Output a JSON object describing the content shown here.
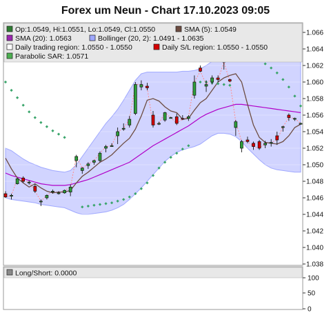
{
  "chart_data": {
    "type": "candlestick",
    "title": "Forex um Neun - Chart 17.10.2023 09:05",
    "ylim": [
      1.038,
      1.067
    ],
    "y_ticks": [
      "1.066",
      "1.064",
      "1.062",
      "1.060",
      "1.058",
      "1.056",
      "1.054",
      "1.052",
      "1.050",
      "1.048",
      "1.046",
      "1.044",
      "1.042",
      "1.040",
      "1.038"
    ],
    "legend": [
      {
        "label": "Op:1.0549, Hi:1.0551, Lo:1.0549, Cl:1.0550",
        "color": "#2e7d32"
      },
      {
        "label": "SMA (5): 1.0549",
        "color": "#6d4c41"
      },
      {
        "label": "SMA (20): 1.0563",
        "color": "#9c27b0"
      },
      {
        "label": "Bollinger (20, 2): 1.0491 - 1.0635",
        "color": "#9fa8ff"
      },
      {
        "label": "Daily trading region: 1.0550 - 1.0550",
        "color": "#ffffff"
      },
      {
        "label": "Daily S/L region: 1.0550 - 1.0550",
        "color": "#d50000"
      },
      {
        "label": "Parabolic SAR: 1.0571",
        "color": "#4caf50"
      }
    ],
    "candles": [
      {
        "o": 1.0465,
        "h": 1.0468,
        "l": 1.046,
        "c": 1.0461
      },
      {
        "o": 1.0462,
        "h": 1.0465,
        "l": 1.0458,
        "c": 1.0463
      },
      {
        "o": 1.0477,
        "h": 1.0484,
        "l": 1.0476,
        "c": 1.0483
      },
      {
        "o": 1.0484,
        "h": 1.0486,
        "l": 1.0478,
        "c": 1.048
      },
      {
        "o": 1.0478,
        "h": 1.0481,
        "l": 1.0476,
        "c": 1.0479
      },
      {
        "o": 1.0474,
        "h": 1.0477,
        "l": 1.0466,
        "c": 1.0468
      },
      {
        "o": 1.0455,
        "h": 1.0458,
        "l": 1.045,
        "c": 1.0456
      },
      {
        "o": 1.046,
        "h": 1.0464,
        "l": 1.0458,
        "c": 1.0463
      },
      {
        "o": 1.0467,
        "h": 1.047,
        "l": 1.0465,
        "c": 1.0468
      },
      {
        "o": 1.0466,
        "h": 1.0468,
        "l": 1.0464,
        "c": 1.0466
      },
      {
        "o": 1.0466,
        "h": 1.047,
        "l": 1.0465,
        "c": 1.0469
      },
      {
        "o": 1.0467,
        "h": 1.0476,
        "l": 1.0462,
        "c": 1.0473
      },
      {
        "o": 1.0505,
        "h": 1.0512,
        "l": 1.0497,
        "c": 1.051
      },
      {
        "o": 1.0493,
        "h": 1.0497,
        "l": 1.0489,
        "c": 1.0496
      },
      {
        "o": 1.0499,
        "h": 1.0503,
        "l": 1.0495,
        "c": 1.0501
      },
      {
        "o": 1.0503,
        "h": 1.0506,
        "l": 1.05,
        "c": 1.0505
      },
      {
        "o": 1.0505,
        "h": 1.0516,
        "l": 1.0503,
        "c": 1.0514
      },
      {
        "o": 1.052,
        "h": 1.0524,
        "l": 1.0515,
        "c": 1.0522
      },
      {
        "o": 1.0523,
        "h": 1.0526,
        "l": 1.0522,
        "c": 1.0523
      },
      {
        "o": 1.0535,
        "h": 1.0545,
        "l": 1.0525,
        "c": 1.054
      },
      {
        "o": 1.0543,
        "h": 1.055,
        "l": 1.0541,
        "c": 1.0544
      },
      {
        "o": 1.0548,
        "h": 1.0559,
        "l": 1.0545,
        "c": 1.0555
      },
      {
        "o": 1.0562,
        "h": 1.06,
        "l": 1.056,
        "c": 1.0597
      },
      {
        "o": 1.0594,
        "h": 1.0602,
        "l": 1.059,
        "c": 1.0597
      },
      {
        "o": 1.0595,
        "h": 1.0599,
        "l": 1.059,
        "c": 1.0593
      },
      {
        "o": 1.056,
        "h": 1.0565,
        "l": 1.0545,
        "c": 1.0548
      },
      {
        "o": 1.0549,
        "h": 1.0552,
        "l": 1.0548,
        "c": 1.055
      },
      {
        "o": 1.0554,
        "h": 1.0564,
        "l": 1.0552,
        "c": 1.0563
      },
      {
        "o": 1.0557,
        "h": 1.0558,
        "l": 1.0556,
        "c": 1.0557
      },
      {
        "o": 1.0558,
        "h": 1.0562,
        "l": 1.0548,
        "c": 1.055
      },
      {
        "o": 1.0556,
        "h": 1.056,
        "l": 1.0554,
        "c": 1.0555
      },
      {
        "o": 1.0556,
        "h": 1.056,
        "l": 1.0553,
        "c": 1.0558
      },
      {
        "o": 1.0584,
        "h": 1.0608,
        "l": 1.058,
        "c": 1.06
      },
      {
        "o": 1.0617,
        "h": 1.062,
        "l": 1.0612,
        "c": 1.0613
      },
      {
        "o": 1.0595,
        "h": 1.0602,
        "l": 1.0588,
        "c": 1.0597
      },
      {
        "o": 1.06,
        "h": 1.0608,
        "l": 1.0597,
        "c": 1.0605
      },
      {
        "o": 1.0605,
        "h": 1.0608,
        "l": 1.06,
        "c": 1.0603
      },
      {
        "o": 1.063,
        "h": 1.0632,
        "l": 1.0615,
        "c": 1.0624
      },
      {
        "o": 1.0603,
        "h": 1.0604,
        "l": 1.06,
        "c": 1.0601
      },
      {
        "o": 1.0545,
        "h": 1.0554,
        "l": 1.0535,
        "c": 1.0552
      },
      {
        "o": 1.052,
        "h": 1.053,
        "l": 1.0515,
        "c": 1.0528
      },
      {
        "o": 1.053,
        "h": 1.0534,
        "l": 1.0526,
        "c": 1.0528
      },
      {
        "o": 1.0526,
        "h": 1.0528,
        "l": 1.0518,
        "c": 1.0522
      },
      {
        "o": 1.0528,
        "h": 1.053,
        "l": 1.0518,
        "c": 1.052
      },
      {
        "o": 1.0524,
        "h": 1.0529,
        "l": 1.052,
        "c": 1.0526
      },
      {
        "o": 1.0527,
        "h": 1.0531,
        "l": 1.0522,
        "c": 1.0527
      },
      {
        "o": 1.0535,
        "h": 1.054,
        "l": 1.0524,
        "c": 1.053
      },
      {
        "o": 1.0545,
        "h": 1.0547,
        "l": 1.054,
        "c": 1.0546
      },
      {
        "o": 1.056,
        "h": 1.0562,
        "l": 1.0553,
        "c": 1.0557
      },
      {
        "o": 1.0555,
        "h": 1.0557,
        "l": 1.0553,
        "c": 1.0556
      },
      {
        "o": 1.0549,
        "h": 1.0551,
        "l": 1.0549,
        "c": 1.055
      }
    ],
    "sma5": [
      1.0508,
      1.0495,
      1.0484,
      1.0478,
      1.0473,
      1.0477,
      1.0472,
      1.0468,
      1.0466,
      1.0467,
      1.0467,
      1.0469,
      1.0478,
      1.0486,
      1.0491,
      1.0497,
      1.0503,
      1.0507,
      1.0512,
      1.0519,
      1.0526,
      1.0532,
      1.0543,
      1.0559,
      1.0578,
      1.058,
      1.0577,
      1.057,
      1.0565,
      1.0563,
      1.0555,
      1.0556,
      1.0566,
      1.0575,
      1.058,
      1.059,
      1.06,
      1.0605,
      1.0608,
      1.061,
      1.06,
      1.0573,
      1.0548,
      1.0533,
      1.0527,
      1.0526,
      1.0525,
      1.0528,
      1.0535,
      1.0545,
      1.0549
    ],
    "sma20": [
      1.049,
      1.0487,
      1.0485,
      1.0483,
      1.0481,
      1.0479,
      1.0477,
      1.0476,
      1.0475,
      1.0475,
      1.0475,
      1.0476,
      1.0478,
      1.048,
      1.0482,
      1.0485,
      1.0488,
      1.0491,
      1.0494,
      1.0497,
      1.05,
      1.0503,
      1.0508,
      1.0513,
      1.0518,
      1.0523,
      1.0527,
      1.0531,
      1.0535,
      1.0539,
      1.0543,
      1.0547,
      1.0552,
      1.0557,
      1.0561,
      1.0564,
      1.0567,
      1.0569,
      1.0571,
      1.0573,
      1.0573,
      1.0572,
      1.0571,
      1.057,
      1.0569,
      1.0568,
      1.0567,
      1.0566,
      1.0565,
      1.0564,
      1.0563
    ],
    "boll_upper": [
      1.052,
      1.0517,
      1.0512,
      1.0507,
      1.0503,
      1.05,
      1.0497,
      1.0495,
      1.0493,
      1.0492,
      1.0491,
      1.0493,
      1.05,
      1.051,
      1.052,
      1.053,
      1.054,
      1.055,
      1.0558,
      1.0567,
      1.0578,
      1.059,
      1.0602,
      1.061,
      1.0612,
      1.0612,
      1.0612,
      1.0612,
      1.0612,
      1.0612,
      1.0613,
      1.0613,
      1.0614,
      1.0616,
      1.062,
      1.0625,
      1.063,
      1.0635,
      1.0638,
      1.064,
      1.0641,
      1.0641,
      1.0641,
      1.0641,
      1.0641,
      1.064,
      1.064,
      1.0639,
      1.0638,
      1.0637,
      1.0635
    ],
    "boll_lower": [
      1.046,
      1.0458,
      1.0457,
      1.0456,
      1.0455,
      1.0454,
      1.0452,
      1.0451,
      1.045,
      1.0449,
      1.0448,
      1.0445,
      1.0442,
      1.044,
      1.044,
      1.0441,
      1.0442,
      1.0443,
      1.0445,
      1.0448,
      1.0452,
      1.0458,
      1.0465,
      1.0472,
      1.048,
      1.0488,
      1.0496,
      1.0504,
      1.051,
      1.0515,
      1.0518,
      1.052,
      1.0522,
      1.0525,
      1.053,
      1.0535,
      1.0538,
      1.0538,
      1.0537,
      1.0534,
      1.0528,
      1.052,
      1.0513,
      1.0506,
      1.05,
      1.0496,
      1.0494,
      1.0493,
      1.0492,
      1.0491,
      1.0491
    ],
    "sar": [
      1.06,
      1.059,
      1.0581,
      1.0572,
      1.0564,
      1.0557,
      1.0551,
      1.0546,
      1.0541,
      1.0537,
      1.0533,
      null,
      null,
      1.0449,
      1.045,
      1.0451,
      1.0452,
      1.0453,
      1.0454,
      1.0456,
      1.0458,
      1.0461,
      1.0465,
      1.0471,
      1.0478,
      1.0487,
      1.0496,
      1.0503,
      1.0509,
      1.0514,
      1.0519,
      1.0523,
      null,
      1.06,
      1.06,
      1.0599,
      1.0598,
      1.0597,
      1.0596,
      1.0634,
      1.0633,
      1.0631,
      1.0629,
      1.0626,
      1.0622,
      1.0617,
      1.0611,
      1.0603,
      1.0594,
      1.0583,
      1.0571
    ],
    "long_short": {
      "label": "Long/Short: 0.0000",
      "ticks": [
        "100",
        "50",
        "0"
      ]
    }
  }
}
